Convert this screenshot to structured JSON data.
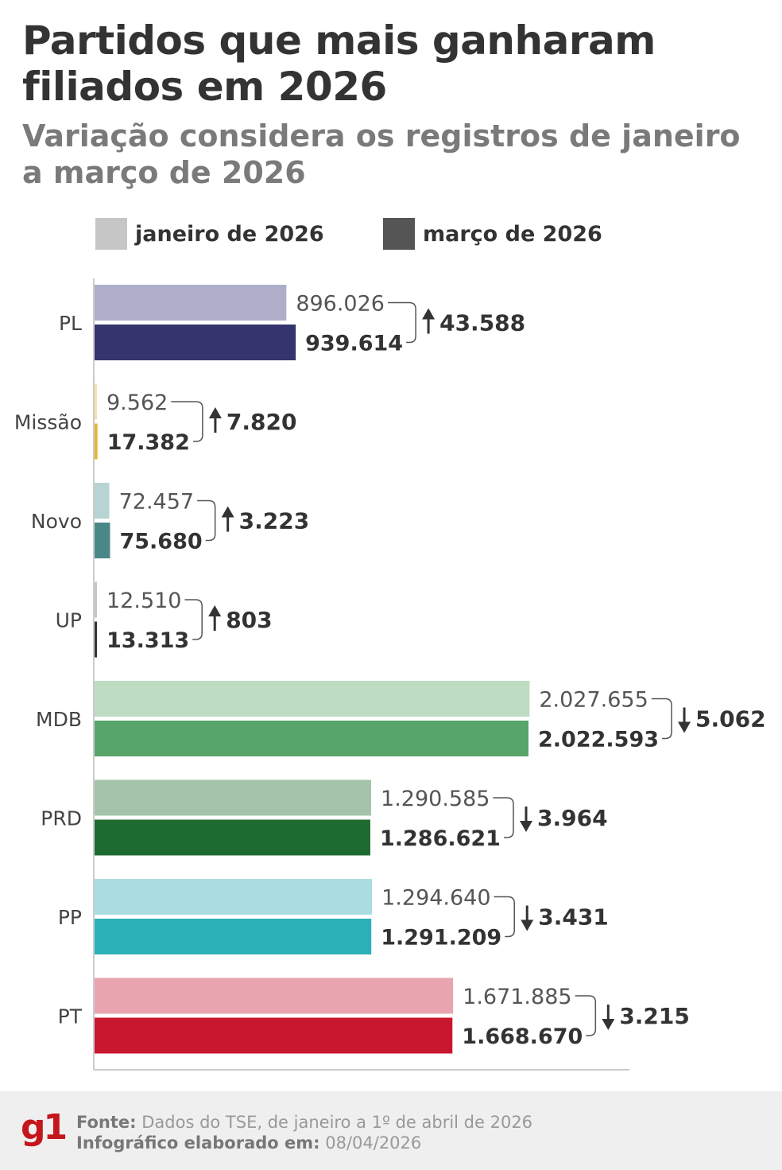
{
  "title": "Partidos que mais ganharam filiados em 2026",
  "subtitle": "Variação considera os registros de janeiro a março de 2026",
  "footer": {
    "logo": "g1",
    "source_label": "Fonte:",
    "source_text": "Dados do TSE, de janeiro a 1º de abril de 2026",
    "date_label": "Infográfico elaborado em:",
    "date_text": "08/04/2026"
  },
  "chart_data": {
    "type": "bar",
    "orientation": "horizontal",
    "legend_position": "top",
    "grid": false,
    "categories": [
      "PL",
      "Missão",
      "Novo",
      "UP",
      "MDB",
      "PRD",
      "PP",
      "PT"
    ],
    "series": [
      {
        "name": "janeiro de 2026",
        "values": [
          896026,
          9562,
          72457,
          12510,
          2027655,
          1290585,
          1294640,
          1671885
        ],
        "labels": [
          "896.026",
          "9.562",
          "72.457",
          "12.510",
          "2.027.655",
          "1.290.585",
          "1.294.640",
          "1.671.885"
        ]
      },
      {
        "name": "março de 2026",
        "values": [
          939614,
          17382,
          75680,
          13313,
          2022593,
          1286621,
          1291209,
          1668670
        ],
        "labels": [
          "939.614",
          "17.382",
          "75.680",
          "13.313",
          "2.022.593",
          "1.286.621",
          "1.291.209",
          "1.668.670"
        ]
      }
    ],
    "variation": [
      {
        "direction": "up",
        "label": "43.588"
      },
      {
        "direction": "up",
        "label": "7.820"
      },
      {
        "direction": "up",
        "label": "3.223"
      },
      {
        "direction": "up",
        "label": "803"
      },
      {
        "direction": "down",
        "label": "5.062"
      },
      {
        "direction": "down",
        "label": "3.964"
      },
      {
        "direction": "down",
        "label": "3.431"
      },
      {
        "direction": "down",
        "label": "3.215"
      }
    ],
    "colors": {
      "january": [
        "#aeaecb",
        "#f6e3a9",
        "#b6d4d4",
        "#c6c6c6",
        "#bddcc1",
        "#a3c4a8",
        "#a9dde0",
        "#e8a5af"
      ],
      "march": [
        "#34346e",
        "#e9b533",
        "#4a8787",
        "#333333",
        "#57a56a",
        "#1e6b30",
        "#2bb0b8",
        "#c8162f"
      ],
      "legend_january": "#c6c6c6",
      "legend_march": "#555555"
    }
  }
}
